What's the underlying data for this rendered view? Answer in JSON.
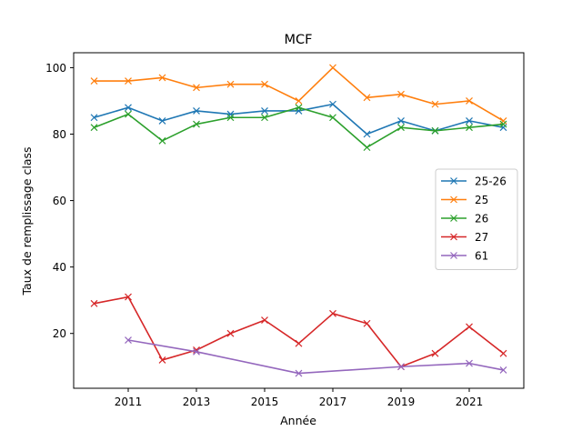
{
  "chart_data": {
    "type": "line",
    "title": "MCF",
    "xlabel": "Année",
    "ylabel": "Taux de remplissage class",
    "xlim": [
      2009.4,
      2022.6
    ],
    "ylim": [
      3.5,
      104.5
    ],
    "xticks": [
      2011,
      2013,
      2015,
      2017,
      2019,
      2021
    ],
    "yticks": [
      20,
      40,
      60,
      80,
      100
    ],
    "grid": false,
    "legend_position": "center-right",
    "marker": "x",
    "series": [
      {
        "name": "25-26",
        "color": "#1f77b4",
        "x": [
          2010,
          2011,
          2012,
          2013,
          2014,
          2015,
          2016,
          2017,
          2018,
          2019,
          2020,
          2021,
          2022
        ],
        "y": [
          85,
          88,
          84,
          87,
          86,
          87,
          87,
          89,
          80,
          84,
          81,
          84,
          82
        ]
      },
      {
        "name": "25",
        "color": "#ff7f0e",
        "x": [
          2010,
          2011,
          2012,
          2013,
          2014,
          2015,
          2016,
          2017,
          2018,
          2019,
          2020,
          2021,
          2022
        ],
        "y": [
          96,
          96,
          97,
          94,
          95,
          95,
          90,
          100,
          91,
          92,
          89,
          90,
          84
        ]
      },
      {
        "name": "26",
        "color": "#2ca02c",
        "x": [
          2010,
          2011,
          2012,
          2013,
          2014,
          2015,
          2016,
          2017,
          2018,
          2019,
          2020,
          2021,
          2022
        ],
        "y": [
          82,
          86,
          78,
          83,
          85,
          85,
          88,
          85,
          76,
          82,
          81,
          82,
          83
        ]
      },
      {
        "name": "27",
        "color": "#d62728",
        "x": [
          2010,
          2011,
          2012,
          2013,
          2014,
          2015,
          2016,
          2017,
          2018,
          2019,
          2020,
          2021,
          2022
        ],
        "y": [
          29,
          31,
          12,
          15,
          20,
          24,
          17,
          26,
          23,
          10,
          14,
          22,
          14
        ]
      },
      {
        "name": "61",
        "color": "#9467bd",
        "x": [
          2011,
          2013,
          2016,
          2019,
          2021,
          2022
        ],
        "y": [
          18,
          14.5,
          8,
          10,
          11,
          9
        ]
      }
    ]
  }
}
